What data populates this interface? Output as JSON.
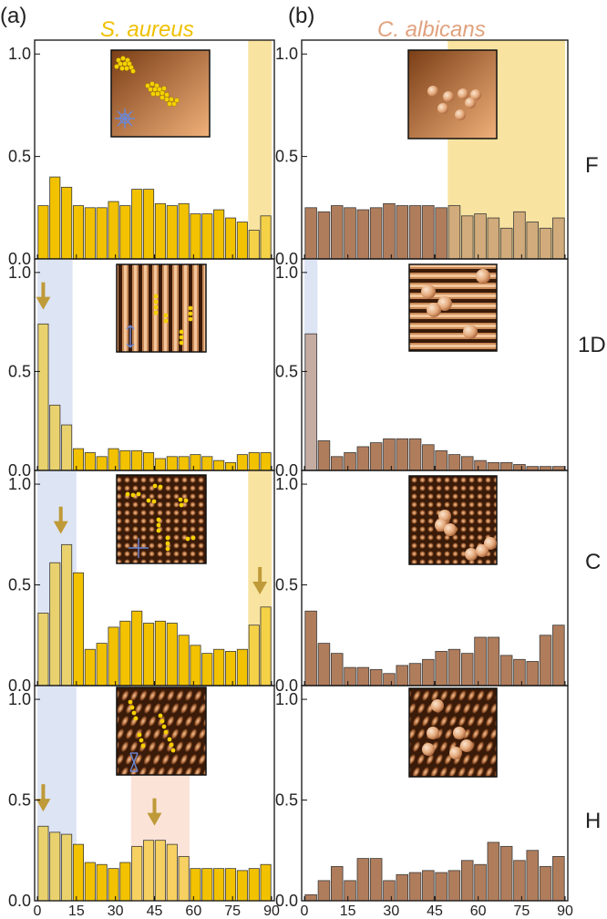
{
  "figure": {
    "panel_labels": [
      "(a)",
      "(b)"
    ],
    "column_titles": [
      "S. aureus",
      "C. albicans"
    ],
    "row_labels": [
      "F",
      "1D",
      "C",
      "H"
    ],
    "x_ticks": [
      "0",
      "15",
      "30",
      "45",
      "60",
      "75",
      "90"
    ],
    "y_ticks": [
      "0.0",
      "0.5",
      "1.0"
    ]
  },
  "colors": {
    "aureus_bar": "#f2c200",
    "albicans_bar": "#b07d5c",
    "bar_edge": "#3a3a3a",
    "blue_band": "#dde4f4",
    "yellow_band": "#f8e3a0",
    "pink_band": "#fbe3d8",
    "arrow": "#bf9a38",
    "title_aureus": "#f0c000",
    "title_albicans": "#e0a27e"
  },
  "chart_data": [
    {
      "type": "bar",
      "id": "a-F",
      "title": "S. aureus",
      "row": "F",
      "xlim": [
        0,
        90
      ],
      "ylim": [
        0,
        1.05
      ],
      "bin_width": 4.5,
      "bins": [
        "0",
        "4.5",
        "9",
        "13.5",
        "18",
        "22.5",
        "27",
        "31.5",
        "36",
        "40.5",
        "45",
        "49.5",
        "54",
        "58.5",
        "63",
        "67.5",
        "72",
        "76.5",
        "81",
        "85.5"
      ],
      "values": [
        0.26,
        0.4,
        0.35,
        0.26,
        0.25,
        0.25,
        0.28,
        0.26,
        0.34,
        0.34,
        0.27,
        0.26,
        0.27,
        0.22,
        0.22,
        0.24,
        0.2,
        0.18,
        0.14,
        0.21
      ],
      "highlight_bands": [
        {
          "x": [
            81,
            90
          ],
          "color": "yellow"
        }
      ],
      "arrows_at": []
    },
    {
      "type": "bar",
      "id": "a-1D",
      "title": "S. aureus",
      "row": "1D",
      "xlim": [
        0,
        90
      ],
      "ylim": [
        0,
        1.05
      ],
      "bin_width": 4.5,
      "bins": [
        "0",
        "4.5",
        "9",
        "13.5",
        "18",
        "22.5",
        "27",
        "31.5",
        "36",
        "40.5",
        "45",
        "49.5",
        "54",
        "58.5",
        "63",
        "67.5",
        "72",
        "76.5",
        "81",
        "85.5"
      ],
      "values": [
        0.74,
        0.33,
        0.23,
        0.11,
        0.09,
        0.07,
        0.11,
        0.1,
        0.1,
        0.09,
        0.06,
        0.07,
        0.07,
        0.08,
        0.07,
        0.05,
        0.04,
        0.08,
        0.09,
        0.09
      ],
      "highlight_bands": [
        {
          "x": [
            0,
            13.5
          ],
          "color": "blue"
        }
      ],
      "arrows_at": [
        [
          2.25,
          0.84
        ]
      ]
    },
    {
      "type": "bar",
      "id": "a-C",
      "title": "S. aureus",
      "row": "C",
      "xlim": [
        0,
        90
      ],
      "ylim": [
        0,
        1.05
      ],
      "bin_width": 4.5,
      "bins": [
        "0",
        "4.5",
        "9",
        "13.5",
        "18",
        "22.5",
        "27",
        "31.5",
        "36",
        "40.5",
        "45",
        "49.5",
        "54",
        "58.5",
        "63",
        "67.5",
        "72",
        "76.5",
        "81",
        "85.5"
      ],
      "values": [
        0.36,
        0.61,
        0.7,
        0.56,
        0.18,
        0.21,
        0.29,
        0.32,
        0.37,
        0.31,
        0.32,
        0.31,
        0.25,
        0.2,
        0.16,
        0.18,
        0.17,
        0.18,
        0.3,
        0.39
      ],
      "highlight_bands": [
        {
          "x": [
            0,
            15
          ],
          "color": "blue"
        },
        {
          "x": [
            81,
            90
          ],
          "color": "yellow"
        }
      ],
      "arrows_at": [
        [
          9,
          0.78
        ],
        [
          85.5,
          0.48
        ]
      ]
    },
    {
      "type": "bar",
      "id": "a-H",
      "title": "S. aureus",
      "row": "H",
      "xlim": [
        0,
        90
      ],
      "ylim": [
        0,
        1.05
      ],
      "bin_width": 4.5,
      "bins": [
        "0",
        "4.5",
        "9",
        "13.5",
        "18",
        "22.5",
        "27",
        "31.5",
        "36",
        "40.5",
        "45",
        "49.5",
        "54",
        "58.5",
        "63",
        "67.5",
        "72",
        "76.5",
        "81",
        "85.5"
      ],
      "values": [
        0.37,
        0.34,
        0.33,
        0.28,
        0.19,
        0.18,
        0.16,
        0.19,
        0.27,
        0.3,
        0.3,
        0.28,
        0.22,
        0.16,
        0.16,
        0.16,
        0.16,
        0.15,
        0.16,
        0.18
      ],
      "highlight_bands": [
        {
          "x": [
            0,
            15
          ],
          "color": "blue"
        },
        {
          "x": [
            36,
            58.5
          ],
          "color": "pink"
        }
      ],
      "arrows_at": [
        [
          2.25,
          0.47
        ],
        [
          45,
          0.4
        ]
      ]
    },
    {
      "type": "bar",
      "id": "b-F",
      "title": "C. albicans",
      "row": "F",
      "xlim": [
        0,
        90
      ],
      "ylim": [
        0,
        1.05
      ],
      "bin_width": 4.5,
      "bins": [
        "0",
        "4.5",
        "9",
        "13.5",
        "18",
        "22.5",
        "27",
        "31.5",
        "36",
        "40.5",
        "45",
        "49.5",
        "54",
        "58.5",
        "63",
        "67.5",
        "72",
        "76.5",
        "81",
        "85.5"
      ],
      "values": [
        0.25,
        0.23,
        0.26,
        0.25,
        0.24,
        0.25,
        0.27,
        0.26,
        0.26,
        0.26,
        0.25,
        0.26,
        0.21,
        0.22,
        0.2,
        0.15,
        0.23,
        0.18,
        0.15,
        0.2
      ],
      "highlight_bands": [
        {
          "x": [
            49.5,
            90
          ],
          "color": "yellow"
        }
      ],
      "arrows_at": []
    },
    {
      "type": "bar",
      "id": "b-1D",
      "title": "C. albicans",
      "row": "1D",
      "xlim": [
        0,
        90
      ],
      "ylim": [
        0,
        1.05
      ],
      "bin_width": 4.5,
      "bins": [
        "0",
        "4.5",
        "9",
        "13.5",
        "18",
        "22.5",
        "27",
        "31.5",
        "36",
        "40.5",
        "45",
        "49.5",
        "54",
        "58.5",
        "63",
        "67.5",
        "72",
        "76.5",
        "81",
        "85.5"
      ],
      "values": [
        0.69,
        0.15,
        0.07,
        0.09,
        0.12,
        0.14,
        0.16,
        0.16,
        0.16,
        0.13,
        0.1,
        0.08,
        0.07,
        0.05,
        0.04,
        0.04,
        0.03,
        0.02,
        0.02,
        0.02
      ],
      "highlight_bands": [
        {
          "x": [
            0,
            4.5
          ],
          "color": "blue"
        }
      ],
      "arrows_at": []
    },
    {
      "type": "bar",
      "id": "b-C",
      "title": "C. albicans",
      "row": "C",
      "xlim": [
        0,
        90
      ],
      "ylim": [
        0,
        1.05
      ],
      "bin_width": 4.5,
      "bins": [
        "0",
        "4.5",
        "9",
        "13.5",
        "18",
        "22.5",
        "27",
        "31.5",
        "36",
        "40.5",
        "45",
        "49.5",
        "54",
        "58.5",
        "63",
        "67.5",
        "72",
        "76.5",
        "81",
        "85.5"
      ],
      "values": [
        0.37,
        0.21,
        0.16,
        0.09,
        0.09,
        0.08,
        0.06,
        0.1,
        0.11,
        0.13,
        0.17,
        0.18,
        0.16,
        0.24,
        0.24,
        0.15,
        0.13,
        0.12,
        0.25,
        0.3
      ],
      "highlight_bands": [],
      "arrows_at": []
    },
    {
      "type": "bar",
      "id": "b-H",
      "title": "C. albicans",
      "row": "H",
      "xlim": [
        0,
        90
      ],
      "ylim": [
        0,
        1.05
      ],
      "bin_width": 4.5,
      "bins": [
        "0",
        "4.5",
        "9",
        "13.5",
        "18",
        "22.5",
        "27",
        "31.5",
        "36",
        "40.5",
        "45",
        "49.5",
        "54",
        "58.5",
        "63",
        "67.5",
        "72",
        "76.5",
        "81",
        "85.5"
      ],
      "values": [
        0.03,
        0.1,
        0.17,
        0.1,
        0.21,
        0.21,
        0.1,
        0.13,
        0.14,
        0.15,
        0.14,
        0.15,
        0.2,
        0.18,
        0.29,
        0.27,
        0.2,
        0.25,
        0.17,
        0.22
      ],
      "highlight_bands": [],
      "arrows_at": []
    }
  ]
}
